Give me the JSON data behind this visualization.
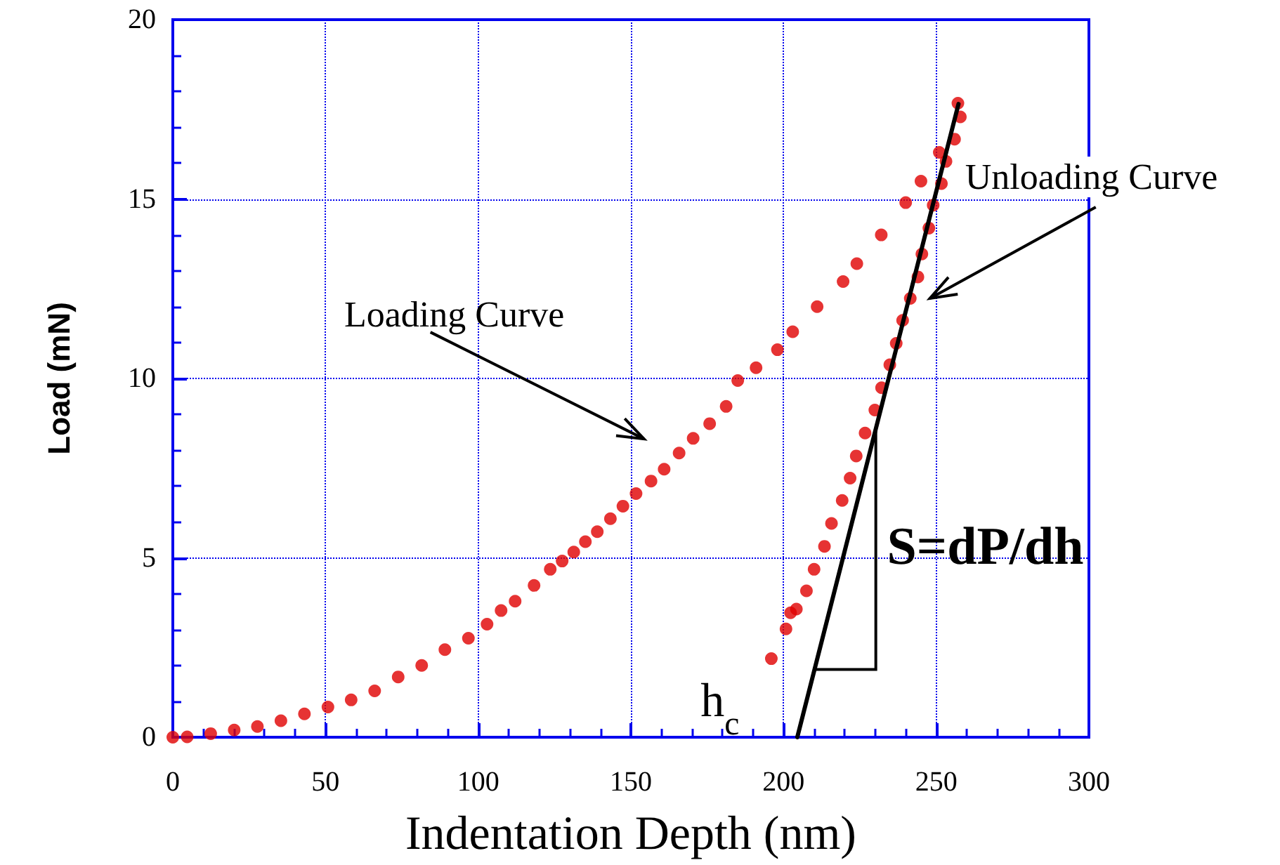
{
  "chart_data": {
    "type": "scatter",
    "xlabel": "Indentation Depth (nm)",
    "ylabel": "Load (mN)",
    "xlim": [
      0,
      300
    ],
    "xticks": [
      0,
      50,
      100,
      150,
      200,
      250,
      300
    ],
    "ylim": [
      0,
      20
    ],
    "yticks": [
      0,
      5,
      10,
      15,
      20
    ],
    "grid": true,
    "marker": "circle",
    "series": [
      {
        "color": "#e00000",
        "x": [
          0,
          4.7,
          12.4,
          20.1,
          27.7,
          35.4,
          43.1,
          50.8,
          58.4,
          66.1,
          73.8,
          81.5,
          89.1,
          96.8,
          102.9,
          107.5,
          112.1,
          118.3,
          123.6,
          127.5,
          131.3,
          135.1,
          139,
          143.3,
          147.4,
          151.7,
          156.6,
          160.9,
          165.8,
          170.4,
          175.8,
          181.2,
          185,
          191,
          198,
          203,
          211,
          219.5,
          224,
          232,
          240,
          245,
          251
        ],
        "values": [
          0,
          0.01,
          0.1,
          0.2,
          0.3,
          0.46,
          0.65,
          0.84,
          1.04,
          1.29,
          1.68,
          2.0,
          2.44,
          2.76,
          3.15,
          3.53,
          3.79,
          4.23,
          4.68,
          4.91,
          5.16,
          5.45,
          5.73,
          6.09,
          6.44,
          6.79,
          7.14,
          7.47,
          7.92,
          8.33,
          8.74,
          9.22,
          9.94,
          10.3,
          10.8,
          11.3,
          12.0,
          12.7,
          13.2,
          14.0,
          14.9,
          15.5,
          16.3
        ]
      },
      {
        "color": "#e00000",
        "x": [
          257.1,
          257.9,
          256,
          253.2,
          251.7,
          249,
          247.6,
          245.3,
          244,
          241.5,
          239,
          236.9,
          234.8,
          232.1,
          229.9,
          226.7,
          223.8,
          221.8,
          219.2,
          215.7,
          213.4,
          210,
          207.5,
          204.2,
          202.3,
          200.8,
          196
        ],
        "values": [
          17.67,
          17.29,
          16.67,
          16.05,
          15.43,
          14.83,
          14.19,
          13.47,
          12.83,
          12.23,
          11.62,
          10.98,
          10.38,
          9.74,
          9.12,
          8.48,
          7.84,
          7.22,
          6.6,
          5.96,
          5.32,
          4.68,
          4.08,
          3.57,
          3.47,
          3.02,
          2.19
        ]
      },
      {
        "type": "line",
        "color": "#000000",
        "marker": "none",
        "line_style": "solid",
        "x": [
          204.5,
          257.3
        ],
        "values": [
          0,
          17.65
        ]
      }
    ],
    "annotations": [
      "Loading Curve",
      "Unloading Curve",
      {
        "text": "S=dP/dh",
        "x": 230.2,
        "y": 8.6
      },
      {
        "text": "h$_{c}$",
        "x": 204.5,
        "y": 0
      }
    ]
  }
}
